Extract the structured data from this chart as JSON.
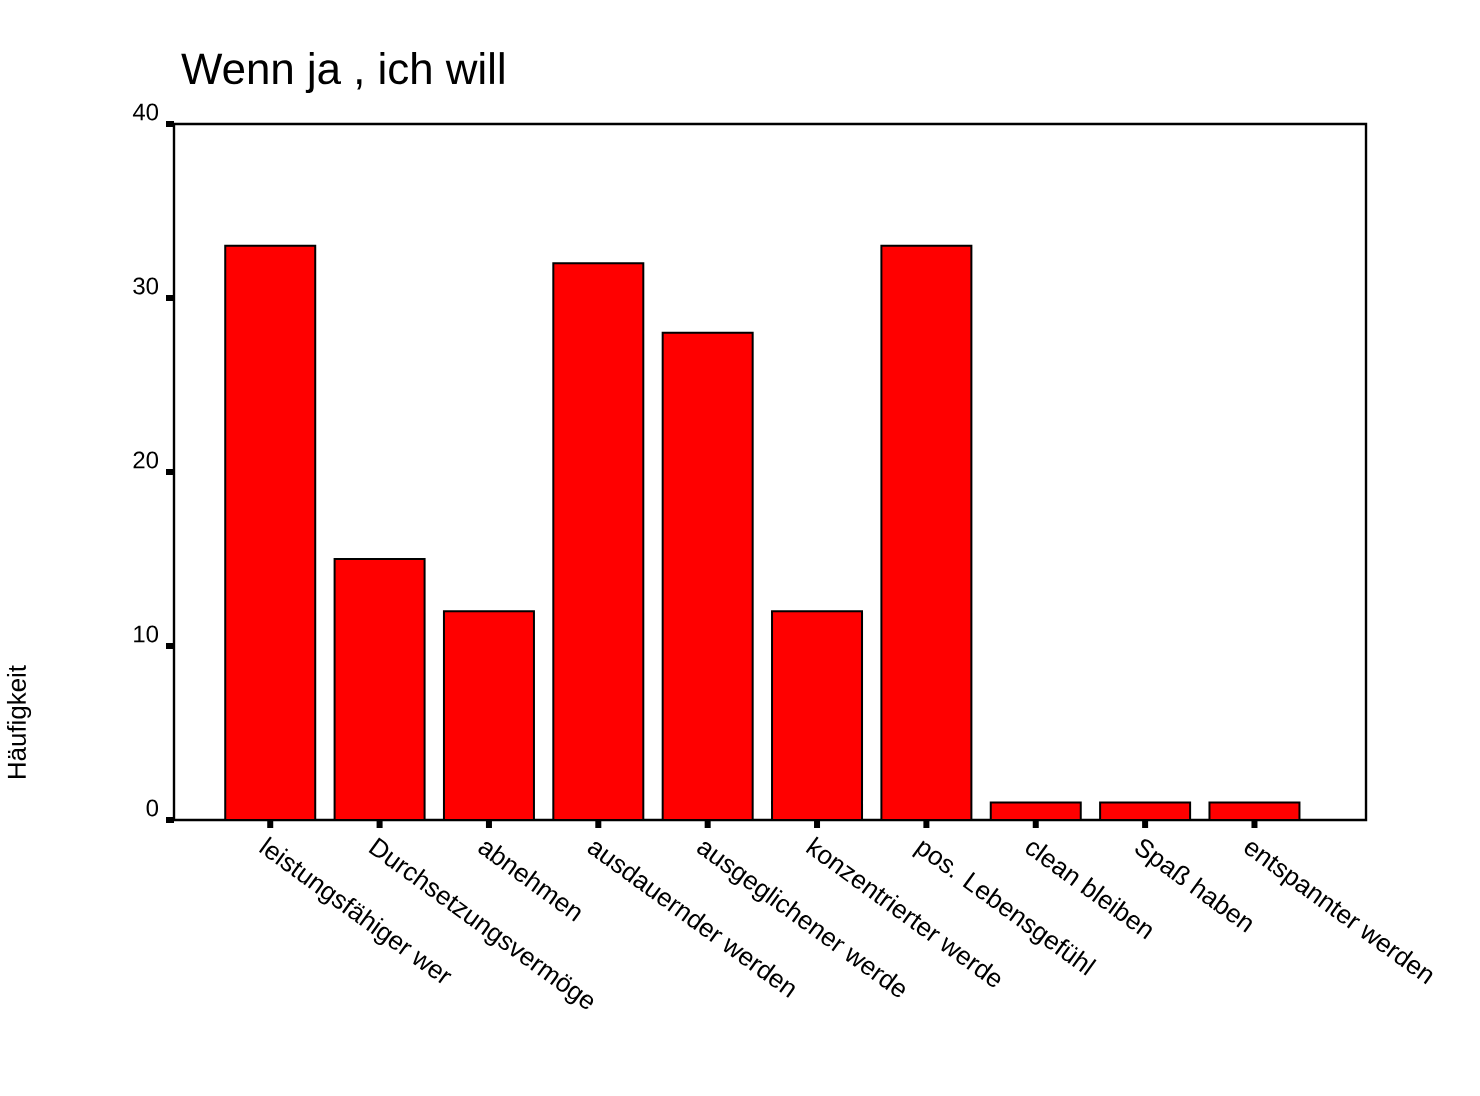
{
  "chart_data": {
    "type": "bar",
    "title": "Wenn ja , ich will",
    "ylabel": "Häufigkeit",
    "categories": [
      "leistungsfähiger wer",
      "Durchsetzungsvermöge",
      "abnehmen",
      "ausdauernder werden",
      "ausgeglichener werde",
      "konzentrierter werde",
      "pos. Lebensgefühl",
      "clean bleiben",
      "Spaß haben",
      "entspannter werden"
    ],
    "values": [
      33,
      15,
      12,
      32,
      28,
      12,
      33,
      1,
      1,
      1
    ],
    "color": "#ff0000",
    "ylim": [
      0,
      40
    ],
    "yticks": [
      0,
      10,
      20,
      30,
      40
    ],
    "grid": false
  }
}
